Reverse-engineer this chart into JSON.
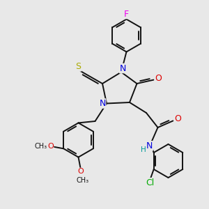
{
  "bg_color": "#e8e8e8",
  "atom_colors": {
    "N": "#0000dd",
    "O": "#dd0000",
    "S": "#aaaa00",
    "F": "#ee00ee",
    "Cl": "#00aa00",
    "C": "#111111",
    "H": "#009999"
  },
  "bond_color": "#111111",
  "bond_lw": 1.4,
  "font_size": 9.0,
  "fig_bg": "#e8e8e8"
}
